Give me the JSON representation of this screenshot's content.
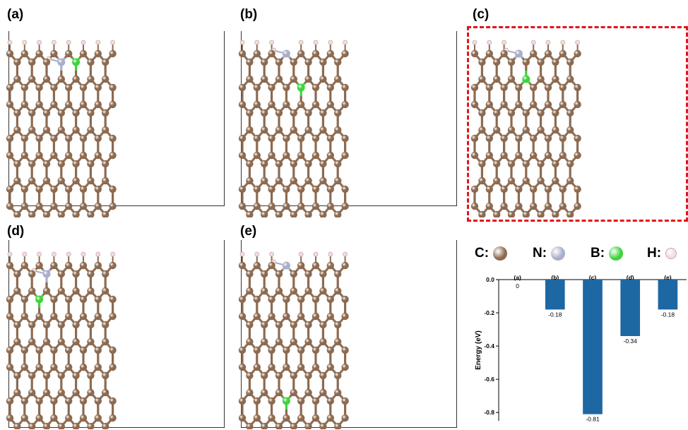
{
  "panels": [
    {
      "label": "(a)",
      "n_pos": [
        7,
        0
      ],
      "b_pos": [
        9,
        0
      ],
      "b_at_edge": true
    },
    {
      "label": "(b)",
      "n_pos": [
        6,
        0
      ],
      "b_pos": [
        8,
        1
      ],
      "b_at_edge": false
    },
    {
      "label": "(c)",
      "n_pos": [
        6,
        0
      ],
      "b_pos": [
        7,
        1
      ],
      "b_at_edge": false,
      "highlighted": true
    },
    {
      "label": "(d)",
      "n_pos": [
        5,
        0
      ],
      "b_pos": [
        4,
        1
      ],
      "b_at_edge": false
    },
    {
      "label": "(e)",
      "n_pos": [
        6,
        0
      ],
      "b_pos": [
        6,
        5
      ],
      "b_at_edge": false
    }
  ],
  "legend": [
    {
      "label": "C:",
      "color": "#8c6a50"
    },
    {
      "label": "N:",
      "color": "#a9aec9"
    },
    {
      "label": "B:",
      "color": "#3fd33c"
    },
    {
      "label": "H:",
      "color": "#f3dede"
    }
  ],
  "colors": {
    "carbon": "#8c6a50",
    "nitrogen": "#a9aec9",
    "boron": "#3fd33c",
    "hydrogen": "#f3dede",
    "bond": "#8c6a50",
    "highlight": "#e3141c",
    "bar": "#1d67a3"
  },
  "chart_data": {
    "type": "bar",
    "categories": [
      "(a)",
      "(b)",
      "(c)",
      "(d)",
      "(e)"
    ],
    "values": [
      0,
      -0.18,
      -0.81,
      -0.34,
      -0.18
    ],
    "value_labels": [
      "0",
      "-0.18",
      "-0.81",
      "-0.34",
      "-0.18"
    ],
    "ylabel": "Energy (eV)",
    "ylim": [
      -0.85,
      0.0
    ],
    "yticks": [
      0.0,
      -0.2,
      -0.4,
      -0.6,
      -0.8
    ],
    "ytick_labels": [
      "0.0",
      "-0.2",
      "-0.4",
      "-0.6",
      "-0.8"
    ],
    "grid": false
  }
}
